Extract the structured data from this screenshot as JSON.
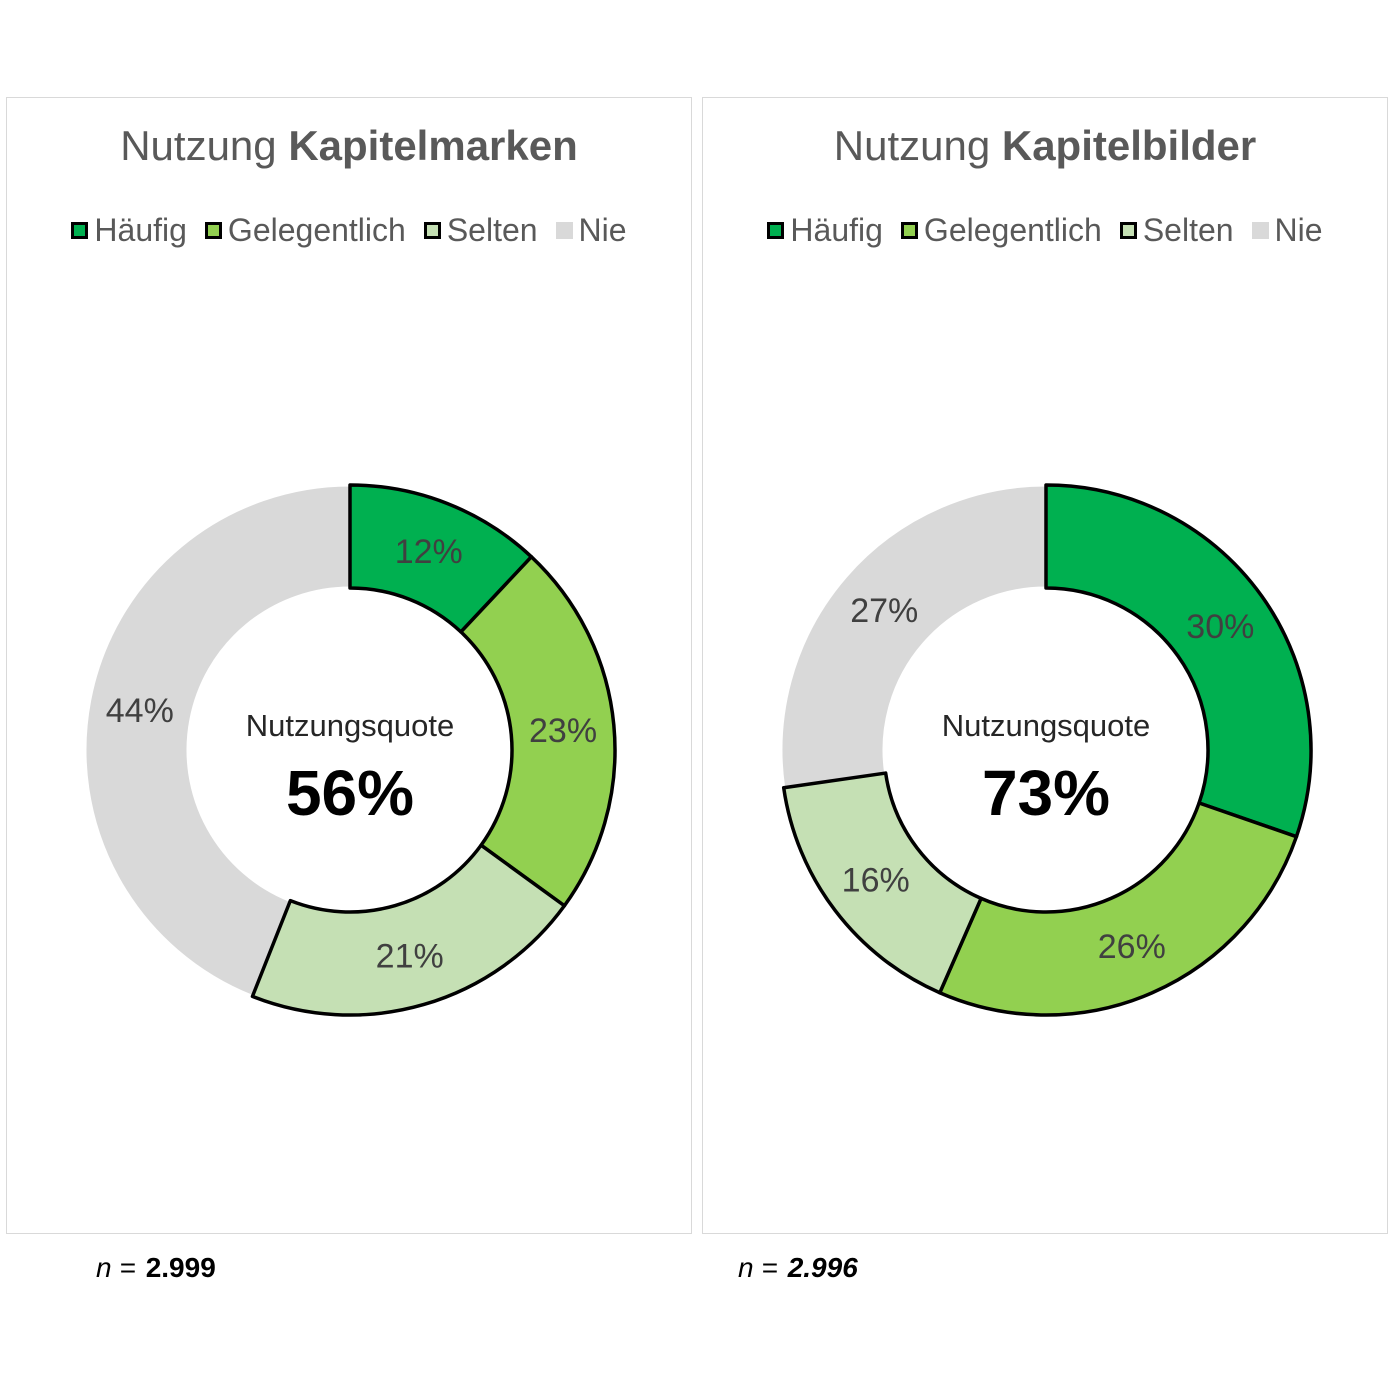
{
  "chart_data": [
    {
      "type": "pie",
      "title_prefix": "Nutzung",
      "title_bold": "Kapitelmarken",
      "categories": [
        "Häufig",
        "Gelegentlich",
        "Selten",
        "Nie"
      ],
      "values": [
        12,
        23,
        21,
        44
      ],
      "value_labels": [
        "12%",
        "23%",
        "21%",
        "44%"
      ],
      "colors": [
        "#00b050",
        "#92d050",
        "#c5e0b4",
        "#d9d9d9"
      ],
      "center_label": "Nutzungsquote",
      "center_value": "56%",
      "legend": "top",
      "n_prefix": "n =",
      "n_value": "2.999"
    },
    {
      "type": "pie",
      "title_prefix": "Nutzung",
      "title_bold": "Kapitelbilder",
      "categories": [
        "Häufig",
        "Gelegentlich",
        "Selten",
        "Nie"
      ],
      "values": [
        30,
        26,
        16,
        27
      ],
      "value_labels": [
        "30%",
        "26%",
        "16%",
        "27%"
      ],
      "colors": [
        "#00b050",
        "#92d050",
        "#c5e0b4",
        "#d9d9d9"
      ],
      "center_label": "Nutzungsquote",
      "center_value": "73%",
      "legend": "top",
      "n_prefix": "n =",
      "n_value": "2.996"
    }
  ]
}
